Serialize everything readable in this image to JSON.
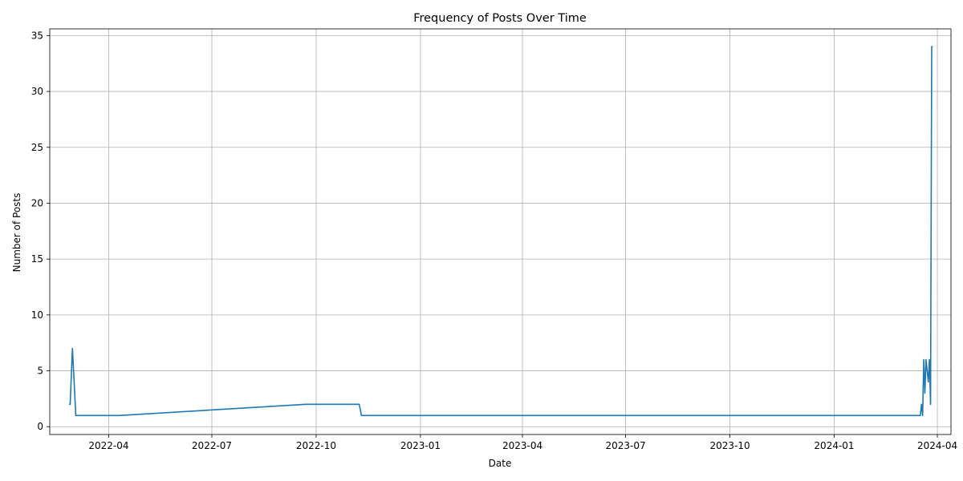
{
  "chart_data": {
    "type": "line",
    "title": "Frequency of Posts Over Time",
    "xlabel": "Date",
    "ylabel": "Number of Posts",
    "x_tick_labels": [
      "2022-04",
      "2022-07",
      "2022-10",
      "2023-01",
      "2023-04",
      "2023-07",
      "2023-10",
      "2024-01",
      "2024-04"
    ],
    "x_ticks": [
      "2022-04-01",
      "2022-07-01",
      "2022-10-01",
      "2023-01-01",
      "2023-04-01",
      "2023-07-01",
      "2023-10-01",
      "2024-01-01",
      "2024-04-01"
    ],
    "y_ticks": [
      0,
      5,
      10,
      15,
      20,
      25,
      30,
      35
    ],
    "xlim": [
      "2022-02-08",
      "2024-04-13"
    ],
    "ylim": [
      -0.7,
      35.6
    ],
    "grid": true,
    "line_color": "#1f77b4",
    "series": [
      {
        "x": [
          "2022-02-25",
          "2022-02-26",
          "2022-02-28",
          "2022-03-03",
          "2022-04-10",
          "2022-09-22",
          "2022-11-08",
          "2022-11-10",
          "2024-03-17",
          "2024-03-18",
          "2024-03-19",
          "2024-03-20",
          "2024-03-21",
          "2024-03-22",
          "2024-03-24",
          "2024-03-25",
          "2024-03-26",
          "2024-03-27",
          "2024-03-28"
        ],
        "y": [
          2,
          2,
          7,
          1,
          1,
          2,
          2,
          1,
          1,
          2,
          1,
          6,
          3,
          6,
          4,
          6,
          2,
          34,
          34
        ]
      }
    ]
  }
}
